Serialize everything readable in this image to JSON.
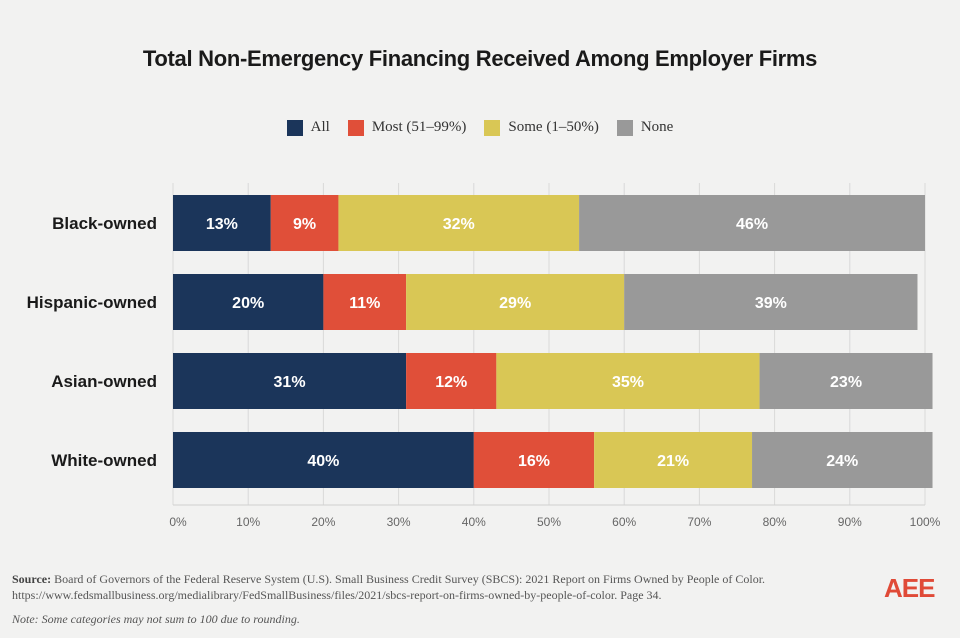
{
  "chart_data": {
    "type": "bar",
    "orientation": "horizontal",
    "stacked": true,
    "title": "Total Non-Emergency Financing Received Among Employer Firms",
    "categories": [
      "Black-owned",
      "Hispanic-owned",
      "Asian-owned",
      "White-owned"
    ],
    "series": [
      {
        "name": "All",
        "color": "#1b355a",
        "values": [
          13,
          20,
          31,
          40
        ]
      },
      {
        "name": "Most (51–99%)",
        "color": "#e04f39",
        "values": [
          9,
          11,
          12,
          16
        ]
      },
      {
        "name": "Some (1–50%)",
        "color": "#d9c755",
        "values": [
          32,
          29,
          35,
          21
        ]
      },
      {
        "name": "None",
        "color": "#999999",
        "values": [
          46,
          39,
          23,
          24
        ]
      }
    ],
    "xlim": [
      0,
      100
    ],
    "xticks": [
      "0%",
      "10%",
      "20%",
      "30%",
      "40%",
      "50%",
      "60%",
      "70%",
      "80%",
      "90%",
      "100%"
    ],
    "grid": true,
    "legend_position": "top"
  },
  "footer": {
    "source_label": "Source:",
    "source_text": " Board of Governors of the Federal Reserve System (U.S). Small Business Credit Survey (SBCS): 2021 Report on Firms Owned by People of Color.",
    "source_url": "https://www.fedsmallbusiness.org/medialibrary/FedSmallBusiness/files/2021/sbcs-report-on-firms-owned-by-people-of-color. Page 34.",
    "note": "Note: Some categories may not sum to 100 due to rounding.",
    "logo": "AEE"
  }
}
